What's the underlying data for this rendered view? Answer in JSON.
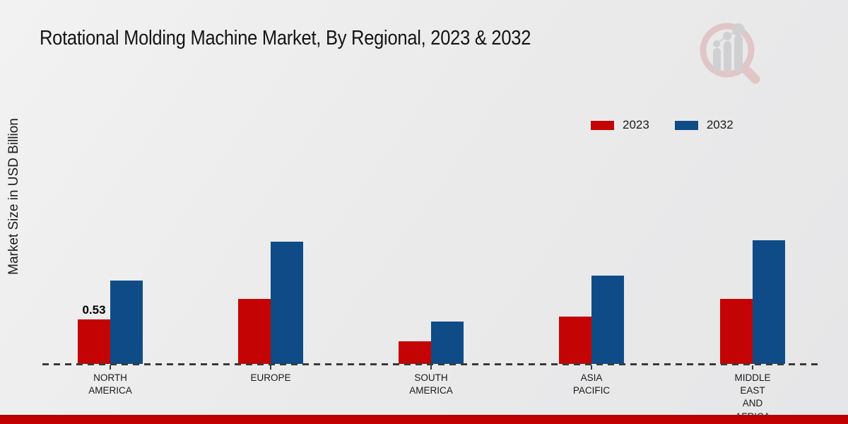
{
  "page": {
    "background_color": "#ebebeb",
    "footer_stripe_color": "#c00000"
  },
  "icons": {
    "watermark_logo": "magnifier-bar-chart-watermark-icon"
  },
  "chart_data": {
    "type": "bar",
    "title": "Rotational Molding Machine Market, By Regional, 2023 & 2032",
    "ylabel": "Market Size in USD Billion",
    "xlabel": "",
    "categories": [
      "NORTH AMERICA",
      "EUROPE",
      "SOUTH AMERICA",
      "ASIA PACIFIC",
      "MIDDLE EAST AND AFRICA"
    ],
    "category_label_lines": [
      [
        "NORTH",
        "AMERICA"
      ],
      [
        "EUROPE"
      ],
      [
        "SOUTH",
        "AMERICA"
      ],
      [
        "ASIA",
        "PACIFIC"
      ],
      [
        "MIDDLE",
        "EAST",
        "AND",
        "AFRICA"
      ]
    ],
    "series": [
      {
        "name": "2023",
        "color": "#c40404",
        "values": [
          0.53,
          0.78,
          0.27,
          0.57,
          0.78
        ]
      },
      {
        "name": "2032",
        "color": "#0f4c87",
        "values": [
          1.0,
          1.47,
          0.51,
          1.06,
          1.48
        ]
      }
    ],
    "annotations": [
      {
        "category_index": 0,
        "series_index": 0,
        "text": "0.53"
      }
    ],
    "ylim": [
      0,
      1.6
    ],
    "grid": false,
    "legend_position": "top-right",
    "baseline_style": "dashed"
  }
}
